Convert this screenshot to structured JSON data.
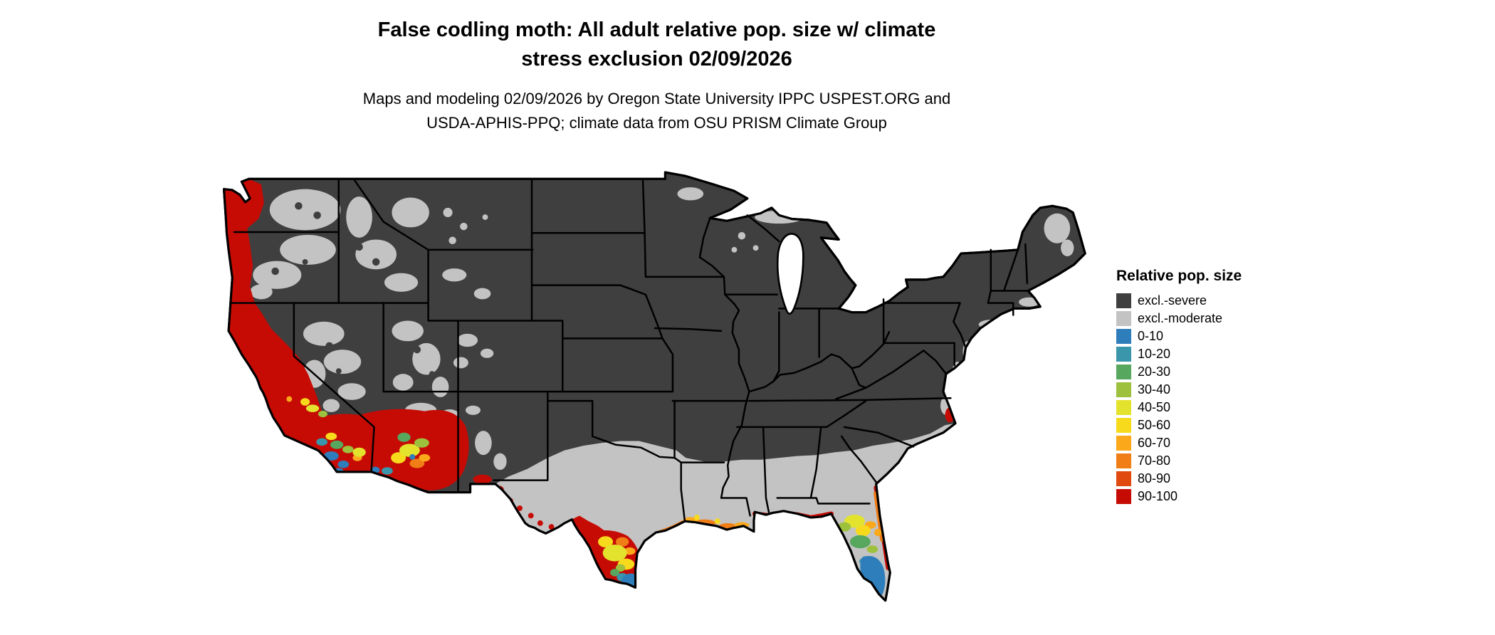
{
  "title": {
    "line1": "False codling moth: All adult relative pop. size w/ climate",
    "line2": "stress exclusion 02/09/2026"
  },
  "subtitle": {
    "line1": "Maps and modeling 02/09/2026 by Oregon State University IPPC USPEST.ORG and",
    "line2": "USDA-APHIS-PPQ; climate data from OSU PRISM Climate Group"
  },
  "legend": {
    "title": "Relative pop. size",
    "entries": [
      {
        "id": "sev",
        "label": "excl.-severe",
        "color": "#3f3f3f"
      },
      {
        "id": "mod",
        "label": "excl.-moderate",
        "color": "#c3c3c3"
      },
      {
        "id": "b0",
        "label": "0-10",
        "color": "#2e7ebc"
      },
      {
        "id": "b10",
        "label": "10-20",
        "color": "#3a96ab"
      },
      {
        "id": "b20",
        "label": "20-30",
        "color": "#57a75e"
      },
      {
        "id": "b30",
        "label": "30-40",
        "color": "#9dc13d"
      },
      {
        "id": "b40",
        "label": "40-50",
        "color": "#e3e32e"
      },
      {
        "id": "b50",
        "label": "50-60",
        "color": "#f8da1d"
      },
      {
        "id": "b60",
        "label": "60-70",
        "color": "#fba81b"
      },
      {
        "id": "b70",
        "label": "70-80",
        "color": "#f07d15"
      },
      {
        "id": "b80",
        "label": "80-90",
        "color": "#e04a0e"
      },
      {
        "id": "b90",
        "label": "90-100",
        "color": "#c60b04"
      }
    ]
  },
  "map": {
    "region": "Continental United States",
    "water_color": "#ffffff",
    "boundary_color": "#000000"
  }
}
